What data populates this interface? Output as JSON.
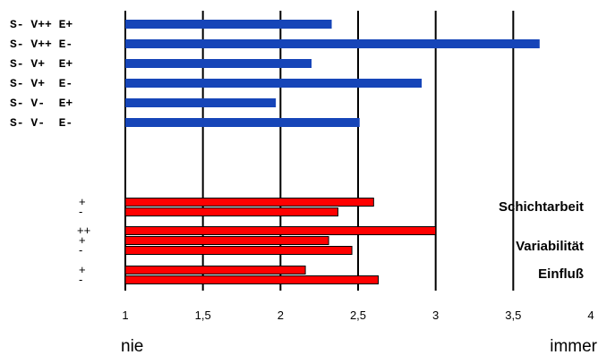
{
  "chart_data": {
    "type": "bar",
    "orientation": "horizontal",
    "xlim": [
      1,
      4
    ],
    "x_ticks": [
      "1",
      "1,5",
      "2",
      "2,5",
      "3",
      "3,5",
      "4"
    ],
    "x_tick_values": [
      1,
      1.5,
      2,
      2.5,
      3,
      3.5,
      4
    ],
    "x_end_labels": {
      "left": "nie",
      "right": "immer"
    },
    "grid": "vertical",
    "series": [
      {
        "color": "#1645b8",
        "categories": [
          "S- V++ E+",
          "S- V++ E-",
          "S- V+  E+",
          "S- V+  E-",
          "S- V-  E+",
          "S- V-  E-"
        ],
        "values": [
          2.33,
          3.67,
          2.2,
          2.91,
          1.97,
          2.51
        ]
      },
      {
        "color": "#ff0000",
        "categories": [
          "+",
          "-",
          "++",
          "+",
          "-",
          "+",
          "-"
        ],
        "values": [
          2.6,
          2.37,
          3.0,
          2.31,
          2.46,
          2.16,
          2.63
        ]
      }
    ],
    "annotations": [
      "Schichtarbeit",
      "Variabilität",
      "Einfluß"
    ]
  }
}
